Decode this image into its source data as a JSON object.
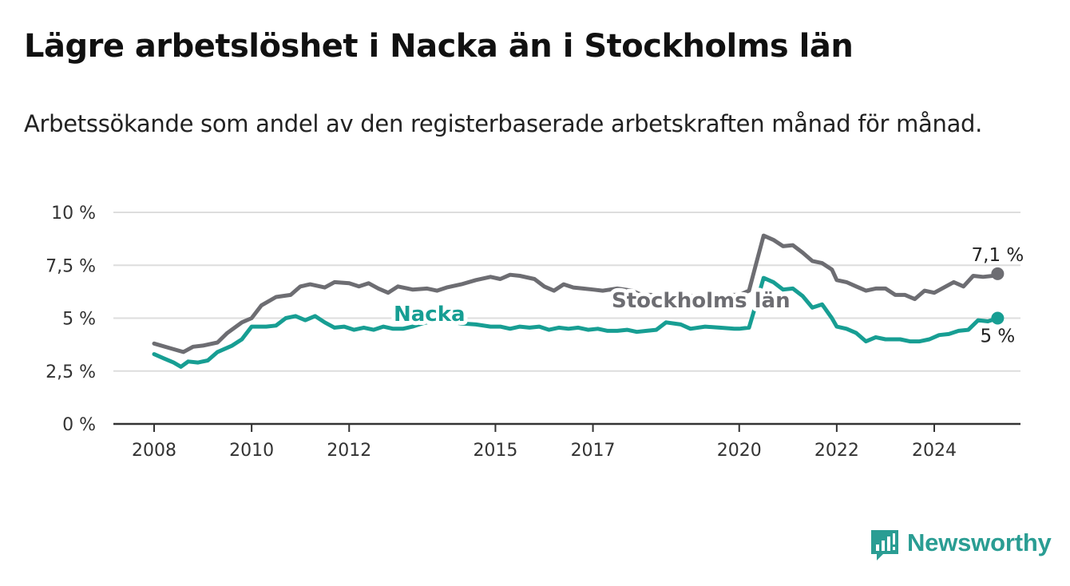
{
  "header": {
    "title": "Lägre arbetslöshet i Nacka än i Stockholms län",
    "subtitle": "Arbetssökande som andel av den registerbaserade arbetskraften månad för månad."
  },
  "brand": {
    "name": "Newsworthy",
    "icon": "newsworthy-logo-icon",
    "color": "#2a9d93"
  },
  "colors": {
    "stockholm": "#6d6d72",
    "nacka": "#179e93",
    "grid": "#dddddd",
    "axis": "#333333"
  },
  "chart_data": {
    "type": "line",
    "title": "Lägre arbetslöshet i Nacka än i Stockholms län",
    "subtitle": "Arbetssökande som andel av den registerbaserade arbetskraften månad för månad.",
    "xlabel": "",
    "ylabel": "",
    "xlim": [
      2007.8,
      2026.5
    ],
    "ylim": [
      0,
      10
    ],
    "x_ticks": [
      2008,
      2010,
      2012,
      2015,
      2017,
      2020,
      2022,
      2024
    ],
    "x_tick_labels": [
      "2008",
      "2010",
      "2012",
      "2015",
      "2017",
      "2020",
      "2022",
      "2024"
    ],
    "y_ticks": [
      0,
      2.5,
      5,
      7.5,
      10
    ],
    "y_tick_labels": [
      "0 %",
      "2,5 %",
      "5 %",
      "7,5 %",
      "10 %"
    ],
    "grid": true,
    "legend": "inline labels",
    "series": [
      {
        "name": "Stockholms län",
        "label_text": "Stockholms län",
        "end_label": "7,1 %",
        "points": [
          [
            2008.0,
            3.8
          ],
          [
            2008.3,
            3.6
          ],
          [
            2008.6,
            3.4
          ],
          [
            2008.8,
            3.65
          ],
          [
            2009.0,
            3.7
          ],
          [
            2009.3,
            3.85
          ],
          [
            2009.5,
            4.3
          ],
          [
            2009.8,
            4.8
          ],
          [
            2010.0,
            5.0
          ],
          [
            2010.2,
            5.6
          ],
          [
            2010.5,
            6.0
          ],
          [
            2010.8,
            6.1
          ],
          [
            2011.0,
            6.5
          ],
          [
            2011.2,
            6.6
          ],
          [
            2011.5,
            6.45
          ],
          [
            2011.7,
            6.7
          ],
          [
            2012.0,
            6.65
          ],
          [
            2012.2,
            6.5
          ],
          [
            2012.4,
            6.65
          ],
          [
            2012.6,
            6.4
          ],
          [
            2012.8,
            6.2
          ],
          [
            2013.0,
            6.5
          ],
          [
            2013.3,
            6.35
          ],
          [
            2013.6,
            6.4
          ],
          [
            2013.8,
            6.3
          ],
          [
            2014.0,
            6.45
          ],
          [
            2014.3,
            6.6
          ],
          [
            2014.6,
            6.8
          ],
          [
            2014.9,
            6.95
          ],
          [
            2015.1,
            6.85
          ],
          [
            2015.3,
            7.05
          ],
          [
            2015.5,
            7.0
          ],
          [
            2015.8,
            6.85
          ],
          [
            2016.0,
            6.5
          ],
          [
            2016.2,
            6.3
          ],
          [
            2016.4,
            6.6
          ],
          [
            2016.6,
            6.45
          ],
          [
            2016.8,
            6.4
          ],
          [
            2017.0,
            6.35
          ],
          [
            2017.2,
            6.3
          ],
          [
            2017.5,
            6.4
          ],
          [
            2017.8,
            6.3
          ],
          [
            2018.0,
            6.1
          ],
          [
            2018.2,
            6.1
          ],
          [
            2018.4,
            6.0
          ],
          [
            2018.6,
            6.1
          ],
          [
            2018.8,
            6.1
          ],
          [
            2019.0,
            6.05
          ],
          [
            2019.3,
            6.1
          ],
          [
            2019.6,
            6.05
          ],
          [
            2019.8,
            6.1
          ],
          [
            2020.0,
            6.1
          ],
          [
            2020.2,
            6.3
          ],
          [
            2020.35,
            7.6
          ],
          [
            2020.5,
            8.9
          ],
          [
            2020.7,
            8.7
          ],
          [
            2020.9,
            8.4
          ],
          [
            2021.1,
            8.45
          ],
          [
            2021.3,
            8.1
          ],
          [
            2021.5,
            7.7
          ],
          [
            2021.7,
            7.6
          ],
          [
            2021.9,
            7.3
          ],
          [
            2022.0,
            6.8
          ],
          [
            2022.2,
            6.7
          ],
          [
            2022.4,
            6.5
          ],
          [
            2022.6,
            6.3
          ],
          [
            2022.8,
            6.4
          ],
          [
            2023.0,
            6.4
          ],
          [
            2023.2,
            6.1
          ],
          [
            2023.4,
            6.1
          ],
          [
            2023.6,
            5.9
          ],
          [
            2023.8,
            6.3
          ],
          [
            2024.0,
            6.2
          ],
          [
            2024.2,
            6.45
          ],
          [
            2024.4,
            6.7
          ],
          [
            2024.6,
            6.5
          ],
          [
            2024.8,
            7.0
          ],
          [
            2025.0,
            6.95
          ],
          [
            2025.2,
            7.0
          ],
          [
            2025.3,
            7.1
          ]
        ]
      },
      {
        "name": "Nacka",
        "label_text": "Nacka",
        "end_label": "5 %",
        "points": [
          [
            2008.0,
            3.3
          ],
          [
            2008.2,
            3.1
          ],
          [
            2008.4,
            2.9
          ],
          [
            2008.55,
            2.7
          ],
          [
            2008.7,
            2.95
          ],
          [
            2008.9,
            2.9
          ],
          [
            2009.1,
            3.0
          ],
          [
            2009.3,
            3.4
          ],
          [
            2009.6,
            3.7
          ],
          [
            2009.8,
            4.0
          ],
          [
            2010.0,
            4.6
          ],
          [
            2010.3,
            4.6
          ],
          [
            2010.5,
            4.65
          ],
          [
            2010.7,
            5.0
          ],
          [
            2010.9,
            5.1
          ],
          [
            2011.1,
            4.9
          ],
          [
            2011.3,
            5.1
          ],
          [
            2011.5,
            4.8
          ],
          [
            2011.7,
            4.55
          ],
          [
            2011.9,
            4.6
          ],
          [
            2012.1,
            4.45
          ],
          [
            2012.3,
            4.55
          ],
          [
            2012.5,
            4.45
          ],
          [
            2012.7,
            4.6
          ],
          [
            2012.9,
            4.5
          ],
          [
            2013.1,
            4.5
          ],
          [
            2013.3,
            4.6
          ],
          [
            2013.5,
            4.75
          ],
          [
            2013.8,
            4.9
          ],
          [
            2014.0,
            4.85
          ],
          [
            2014.3,
            4.75
          ],
          [
            2014.6,
            4.7
          ],
          [
            2014.9,
            4.6
          ],
          [
            2015.1,
            4.6
          ],
          [
            2015.3,
            4.5
          ],
          [
            2015.5,
            4.6
          ],
          [
            2015.7,
            4.55
          ],
          [
            2015.9,
            4.6
          ],
          [
            2016.1,
            4.45
          ],
          [
            2016.3,
            4.55
          ],
          [
            2016.5,
            4.5
          ],
          [
            2016.7,
            4.55
          ],
          [
            2016.9,
            4.45
          ],
          [
            2017.1,
            4.5
          ],
          [
            2017.3,
            4.4
          ],
          [
            2017.5,
            4.4
          ],
          [
            2017.7,
            4.45
          ],
          [
            2017.9,
            4.35
          ],
          [
            2018.1,
            4.4
          ],
          [
            2018.3,
            4.45
          ],
          [
            2018.5,
            4.8
          ],
          [
            2018.8,
            4.7
          ],
          [
            2019.0,
            4.5
          ],
          [
            2019.3,
            4.6
          ],
          [
            2019.6,
            4.55
          ],
          [
            2019.9,
            4.5
          ],
          [
            2020.0,
            4.5
          ],
          [
            2020.2,
            4.55
          ],
          [
            2020.35,
            5.7
          ],
          [
            2020.5,
            6.9
          ],
          [
            2020.7,
            6.7
          ],
          [
            2020.9,
            6.35
          ],
          [
            2021.1,
            6.4
          ],
          [
            2021.3,
            6.05
          ],
          [
            2021.5,
            5.5
          ],
          [
            2021.7,
            5.65
          ],
          [
            2021.9,
            5.0
          ],
          [
            2022.0,
            4.6
          ],
          [
            2022.2,
            4.5
          ],
          [
            2022.4,
            4.3
          ],
          [
            2022.6,
            3.9
          ],
          [
            2022.8,
            4.1
          ],
          [
            2023.0,
            4.0
          ],
          [
            2023.3,
            4.0
          ],
          [
            2023.5,
            3.9
          ],
          [
            2023.7,
            3.9
          ],
          [
            2023.9,
            4.0
          ],
          [
            2024.1,
            4.2
          ],
          [
            2024.3,
            4.25
          ],
          [
            2024.5,
            4.4
          ],
          [
            2024.7,
            4.45
          ],
          [
            2024.9,
            4.9
          ],
          [
            2025.1,
            4.85
          ],
          [
            2025.3,
            5.0
          ]
        ]
      }
    ]
  }
}
